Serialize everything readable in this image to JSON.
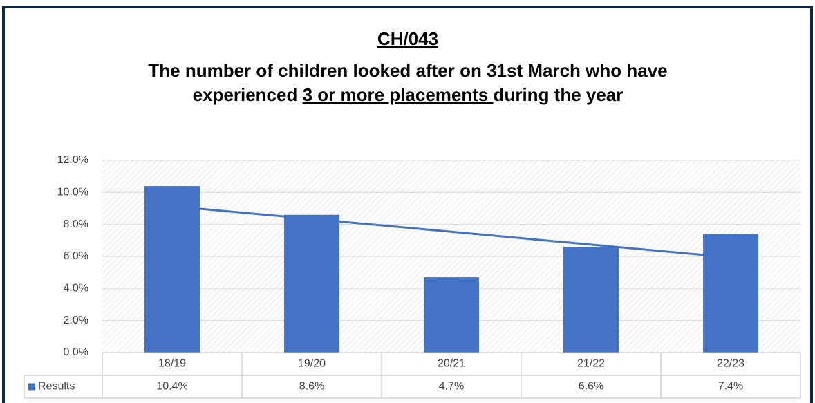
{
  "chart_data": {
    "type": "bar",
    "code": "CH/043",
    "title": [
      "The number of children looked after on 31st March who have",
      "experienced ",
      "3 or more placements ",
      "during the year"
    ],
    "categories": [
      "18/19",
      "19/20",
      "20/21",
      "21/22",
      "22/23"
    ],
    "series": [
      {
        "name": "Results",
        "color": "#4472c4",
        "values": [
          10.4,
          8.6,
          4.7,
          6.6,
          7.4
        ],
        "value_labels": [
          "10.4%",
          "8.6%",
          "4.7%",
          "6.6%",
          "7.4%"
        ]
      }
    ],
    "trendline": "linear",
    "ylim": [
      0,
      12
    ],
    "yticks": [
      {
        "value": 0,
        "label": "0.0%"
      },
      {
        "value": 2,
        "label": "2.0%"
      },
      {
        "value": 4,
        "label": "4.0%"
      },
      {
        "value": 6,
        "label": "6.0%"
      },
      {
        "value": 8,
        "label": "8.0%"
      },
      {
        "value": 10,
        "label": "10.0%"
      },
      {
        "value": 12,
        "label": "12.0%"
      }
    ],
    "grid": true
  }
}
